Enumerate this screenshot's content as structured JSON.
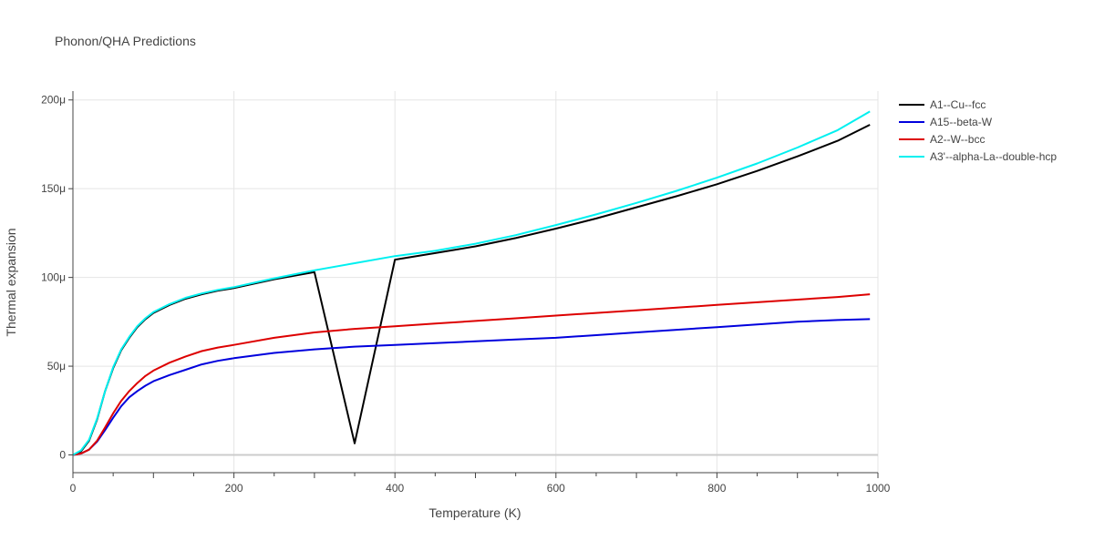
{
  "chart_data": {
    "type": "line",
    "title": "Phonon/QHA Predictions",
    "xlabel": "Temperature (K)",
    "ylabel": "Thermal expansion",
    "xlim": [
      0,
      1000
    ],
    "ylim": [
      -1e-05,
      0.000205
    ],
    "x_ticks": [
      {
        "value": 0,
        "label": "0"
      },
      {
        "value": 200,
        "label": "200"
      },
      {
        "value": 400,
        "label": "400"
      },
      {
        "value": 600,
        "label": "600"
      },
      {
        "value": 800,
        "label": "800"
      },
      {
        "value": 1000,
        "label": "1000"
      }
    ],
    "y_ticks": [
      {
        "value": 0,
        "label": "0"
      },
      {
        "value": 5e-05,
        "label": "50μ"
      },
      {
        "value": 0.0001,
        "label": "100μ"
      },
      {
        "value": 0.00015,
        "label": "150μ"
      },
      {
        "value": 0.0002,
        "label": "200μ"
      }
    ],
    "grid": true,
    "legend_position": "right",
    "x": [
      0,
      10,
      20,
      30,
      40,
      50,
      60,
      70,
      80,
      90,
      100,
      120,
      140,
      160,
      180,
      200,
      250,
      300,
      350,
      400,
      450,
      500,
      550,
      600,
      650,
      700,
      750,
      800,
      850,
      900,
      950,
      990
    ],
    "series": [
      {
        "name": "A1--Cu--fcc",
        "color": "#000000",
        "values": [
          0,
          2e-06,
          8e-06,
          2e-05,
          3.6e-05,
          4.9e-05,
          5.9e-05,
          6.6e-05,
          7.2e-05,
          7.65e-05,
          8e-05,
          8.45e-05,
          8.8e-05,
          9.05e-05,
          9.25e-05,
          9.4e-05,
          9.9e-05,
          0.000103,
          6.5e-06,
          0.00011,
          0.0001137,
          0.0001175,
          0.0001222,
          0.0001275,
          0.0001332,
          0.0001395,
          0.0001458,
          0.0001525,
          0.00016,
          0.0001682,
          0.000177,
          0.000186
        ]
      },
      {
        "name": "A15--beta-W",
        "color": "#0000dd",
        "values": [
          0,
          8e-07,
          3e-06,
          7.5e-06,
          1.4e-05,
          2.1e-05,
          2.75e-05,
          3.25e-05,
          3.6e-05,
          3.9e-05,
          4.15e-05,
          4.5e-05,
          4.8e-05,
          5.1e-05,
          5.3e-05,
          5.45e-05,
          5.75e-05,
          5.95e-05,
          6.1e-05,
          6.2e-05,
          6.3e-05,
          6.4e-05,
          6.5e-05,
          6.6e-05,
          6.75e-05,
          6.9e-05,
          7.05e-05,
          7.2e-05,
          7.35e-05,
          7.5e-05,
          7.6e-05,
          7.65e-05
        ]
      },
      {
        "name": "A2--W--bcc",
        "color": "#dd0000",
        "values": [
          0,
          8e-07,
          3e-06,
          8e-06,
          1.55e-05,
          2.35e-05,
          3.05e-05,
          3.6e-05,
          4.05e-05,
          4.45e-05,
          4.75e-05,
          5.2e-05,
          5.55e-05,
          5.85e-05,
          6.05e-05,
          6.2e-05,
          6.6e-05,
          6.9e-05,
          7.1e-05,
          7.25e-05,
          7.4e-05,
          7.55e-05,
          7.7e-05,
          7.85e-05,
          8e-05,
          8.15e-05,
          8.3e-05,
          8.45e-05,
          8.6e-05,
          8.75e-05,
          8.9e-05,
          9.05e-05
        ]
      },
      {
        "name": "A3'--alpha-La--double-hcp",
        "color": "#00f0f0",
        "values": [
          0,
          2.5e-06,
          8.5e-06,
          2.05e-05,
          3.6e-05,
          4.95e-05,
          5.95e-05,
          6.65e-05,
          7.25e-05,
          7.7e-05,
          8.05e-05,
          8.5e-05,
          8.85e-05,
          9.1e-05,
          9.3e-05,
          9.45e-05,
          9.95e-05,
          0.000104,
          0.000108,
          0.000112,
          0.000115,
          0.000119,
          0.0001238,
          0.0001295,
          0.0001355,
          0.000142,
          0.0001488,
          0.0001562,
          0.0001642,
          0.0001732,
          0.000183,
          0.0001935
        ]
      }
    ]
  }
}
